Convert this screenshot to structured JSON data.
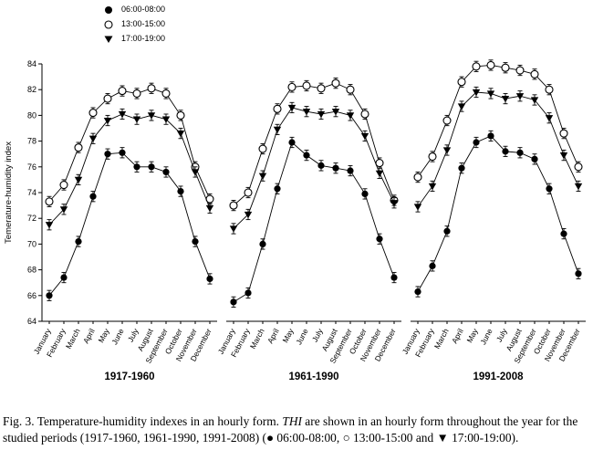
{
  "legend": {
    "items": [
      {
        "label": "06:00-08:00",
        "marker": "filled-circle"
      },
      {
        "label": "13:00-15:00",
        "marker": "open-circle"
      },
      {
        "label": "17:00-19:00",
        "marker": "filled-triangle-down"
      }
    ]
  },
  "axes": {
    "y_label": "Temerature-humidity index",
    "y_min": 64,
    "y_max": 84,
    "y_step": 2
  },
  "chart_data": [
    {
      "type": "line",
      "title": "1917-1960",
      "ylabel": "Temerature-humidity index",
      "ylim": [
        64,
        84
      ],
      "grid": false,
      "categories": [
        "January",
        "February",
        "March",
        "April",
        "May",
        "June",
        "July",
        "August",
        "September",
        "October",
        "November",
        "December"
      ],
      "series": [
        {
          "name": "06:00-08:00",
          "marker": "filled-circle",
          "error_bar": 0.4,
          "values": [
            66.0,
            67.4,
            70.2,
            73.7,
            77.0,
            77.1,
            76.0,
            76.0,
            75.6,
            74.1,
            70.2,
            67.3
          ]
        },
        {
          "name": "13:00-15:00",
          "marker": "open-circle",
          "error_bar": 0.4,
          "values": [
            73.3,
            74.6,
            77.5,
            80.2,
            81.3,
            81.9,
            81.7,
            82.1,
            81.7,
            80.0,
            76.0,
            73.5
          ]
        },
        {
          "name": "17:00-19:00",
          "marker": "filled-triangle-down",
          "error_bar": 0.4,
          "values": [
            71.5,
            72.7,
            75.0,
            78.2,
            79.6,
            80.1,
            79.7,
            80.0,
            79.7,
            78.6,
            75.6,
            72.8
          ]
        }
      ]
    },
    {
      "type": "line",
      "title": "1961-1990",
      "ylabel": "Temerature-humidity index",
      "ylim": [
        64,
        84
      ],
      "grid": false,
      "categories": [
        "January",
        "February",
        "March",
        "April",
        "May",
        "June",
        "July",
        "August",
        "September",
        "October",
        "November",
        "December"
      ],
      "series": [
        {
          "name": "06:00-08:00",
          "marker": "filled-circle",
          "error_bar": 0.4,
          "values": [
            65.5,
            66.2,
            70.0,
            74.3,
            77.9,
            76.9,
            76.1,
            75.9,
            75.7,
            73.9,
            70.4,
            67.4
          ]
        },
        {
          "name": "13:00-15:00",
          "marker": "open-circle",
          "error_bar": 0.4,
          "values": [
            73.0,
            74.0,
            77.4,
            80.5,
            82.2,
            82.3,
            82.1,
            82.5,
            82.0,
            80.1,
            76.3,
            73.4
          ]
        },
        {
          "name": "17:00-19:00",
          "marker": "filled-triangle-down",
          "error_bar": 0.4,
          "values": [
            71.2,
            72.3,
            75.3,
            78.9,
            80.6,
            80.3,
            80.1,
            80.3,
            80.0,
            78.4,
            75.5,
            73.2
          ]
        }
      ]
    },
    {
      "type": "line",
      "title": "1991-2008",
      "ylabel": "Temerature-humidity index",
      "ylim": [
        64,
        84
      ],
      "grid": false,
      "categories": [
        "January",
        "February",
        "March",
        "April",
        "May",
        "June",
        "July",
        "August",
        "September",
        "October",
        "November",
        "December"
      ],
      "series": [
        {
          "name": "06:00-08:00",
          "marker": "filled-circle",
          "error_bar": 0.4,
          "values": [
            66.3,
            68.3,
            71.0,
            75.9,
            77.9,
            78.4,
            77.2,
            77.1,
            76.6,
            74.3,
            70.8,
            67.7
          ]
        },
        {
          "name": "13:00-15:00",
          "marker": "open-circle",
          "error_bar": 0.4,
          "values": [
            75.2,
            76.8,
            79.6,
            82.6,
            83.8,
            83.9,
            83.7,
            83.5,
            83.2,
            82.0,
            78.6,
            76.0
          ]
        },
        {
          "name": "17:00-19:00",
          "marker": "filled-triangle-down",
          "error_bar": 0.4,
          "values": [
            72.9,
            74.5,
            77.3,
            80.7,
            81.8,
            81.7,
            81.3,
            81.5,
            81.2,
            79.8,
            76.9,
            74.5
          ]
        }
      ]
    }
  ],
  "caption": {
    "lead": "Fig. 3. Temperature-humidity indexes in an hourly form. ",
    "italic": "THI",
    "rest": " are shown in an hourly form throughout the year for the studied periods (1917-1960, 1961-1990, 1991-2008) (● 06:00-08:00, ○ 13:00-15:00 and ▼ 17:00-19:00)."
  }
}
